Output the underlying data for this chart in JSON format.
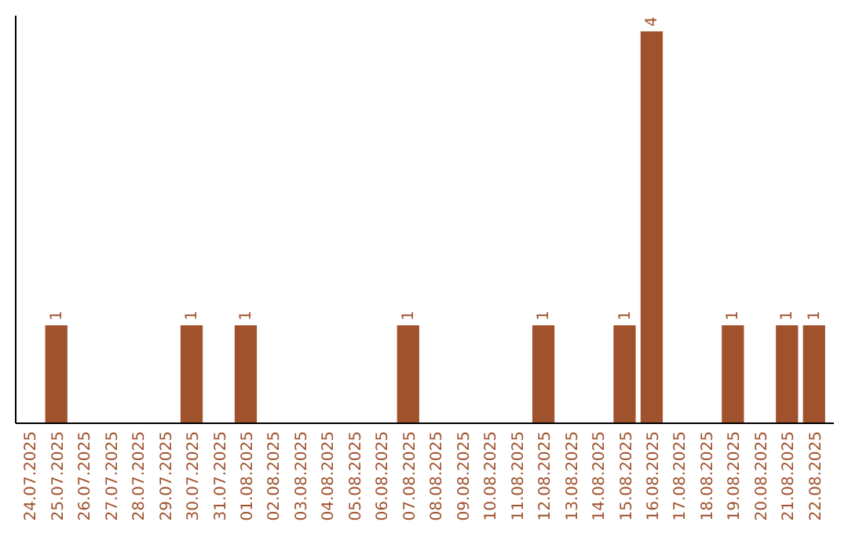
{
  "chart_data": {
    "type": "bar",
    "tick_labels": "x",
    "grid": false,
    "categories": [
      "24.07.2025",
      "25.07.2025",
      "26.07.2025",
      "27.07.2025",
      "28.07.2025",
      "29.07.2025",
      "30.07.2025",
      "31.07.2025",
      "01.08.2025",
      "02.08.2025",
      "03.08.2025",
      "04.08.2025",
      "05.08.2025",
      "06.08.2025",
      "07.08.2025",
      "08.08.2025",
      "09.08.2025",
      "10.08.2025",
      "11.08.2025",
      "12.08.2025",
      "13.08.2025",
      "14.08.2025",
      "15.08.2025",
      "16.08.2025",
      "17.08.2025",
      "18.08.2025",
      "19.08.2025",
      "20.08.2025",
      "21.08.2025",
      "22.08.2025"
    ],
    "values": [
      0,
      1,
      0,
      0,
      0,
      0,
      1,
      0,
      1,
      0,
      0,
      0,
      0,
      0,
      1,
      0,
      0,
      0,
      0,
      1,
      0,
      0,
      1,
      4,
      0,
      0,
      1,
      0,
      1,
      1
    ],
    "value_labels": [
      null,
      "1",
      null,
      null,
      null,
      null,
      "1",
      null,
      "1",
      null,
      null,
      null,
      null,
      null,
      "1",
      null,
      null,
      null,
      null,
      "1",
      null,
      null,
      "1",
      "4",
      null,
      null,
      "1",
      null,
      "1",
      "1"
    ],
    "color": "#a0522d"
  }
}
